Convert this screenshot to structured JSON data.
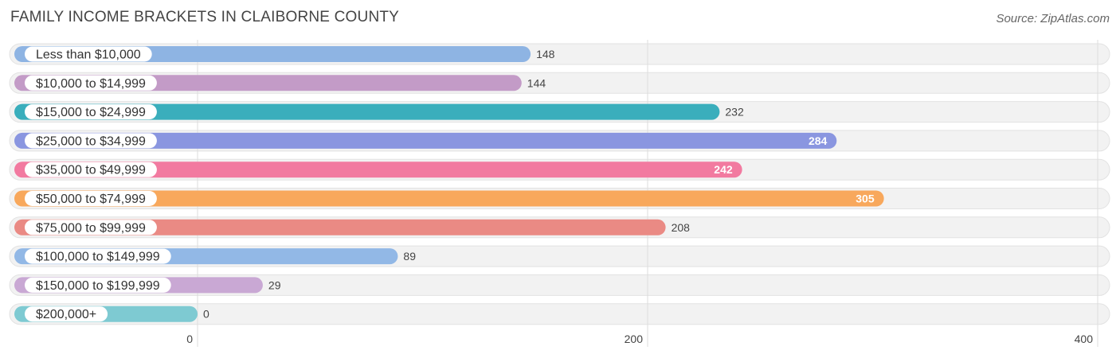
{
  "header": {
    "title": "FAMILY INCOME BRACKETS IN CLAIBORNE COUNTY",
    "source": "Source: ZipAtlas.com"
  },
  "chart_data": {
    "type": "bar",
    "orientation": "horizontal",
    "title": "FAMILY INCOME BRACKETS IN CLAIBORNE COUNTY",
    "categories": [
      "Less than $10,000",
      "$10,000 to $14,999",
      "$15,000 to $24,999",
      "$25,000 to $34,999",
      "$35,000 to $49,999",
      "$50,000 to $74,999",
      "$75,000 to $99,999",
      "$100,000 to $149,999",
      "$150,000 to $199,999",
      "$200,000+"
    ],
    "values": [
      148,
      144,
      232,
      284,
      242,
      305,
      208,
      89,
      29,
      0
    ],
    "value_labels": [
      "148",
      "144",
      "232",
      "284",
      "242",
      "305",
      "208",
      "89",
      "29",
      "0"
    ],
    "colors": [
      "#8eb4e3",
      "#c39bc7",
      "#3aaebc",
      "#8a96e0",
      "#f27aa0",
      "#f8a85c",
      "#ea8a84",
      "#92b8e6",
      "#c9a8d4",
      "#7ecad2"
    ],
    "label_inside": [
      false,
      false,
      false,
      true,
      true,
      true,
      false,
      false,
      false,
      false
    ],
    "xlim": [
      0,
      400
    ],
    "xticks": [
      0,
      200,
      400
    ],
    "xtick_labels": [
      "0",
      "200",
      "400"
    ],
    "grid": true
  }
}
